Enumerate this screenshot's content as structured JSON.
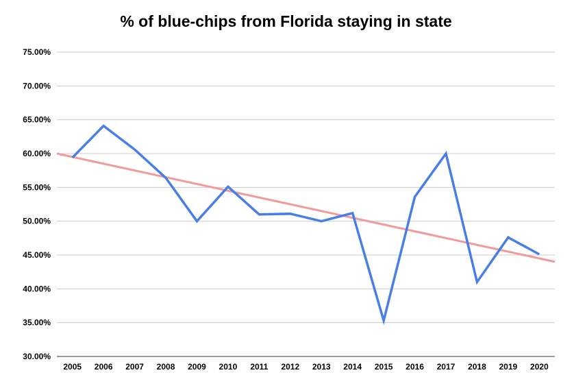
{
  "chart_data": {
    "type": "line",
    "title": "% of blue-chips from Florida staying in state",
    "xlabel": "",
    "ylabel": "",
    "categories": [
      "2005",
      "2006",
      "2007",
      "2008",
      "2009",
      "2010",
      "2011",
      "2012",
      "2013",
      "2014",
      "2015",
      "2016",
      "2017",
      "2018",
      "2019",
      "2020"
    ],
    "series": [
      {
        "values": [
          59.4,
          64.1,
          60.6,
          56.4,
          50.0,
          55.1,
          51.0,
          51.1,
          50.0,
          51.2,
          35.3,
          53.6,
          60.0,
          41.0,
          47.6,
          45.1
        ],
        "color": "#4a7ee7"
      }
    ],
    "trendline": {
      "start": 60.0,
      "end": 44.0,
      "color": "#f19a9a"
    },
    "ylim": [
      30,
      75
    ],
    "yticks": [
      "75.00%",
      "70.00%",
      "65.00%",
      "60.00%",
      "55.00%",
      "50.00%",
      "45.00%",
      "40.00%",
      "35.00%",
      "30.00%"
    ],
    "grid": true,
    "legend": "none"
  }
}
